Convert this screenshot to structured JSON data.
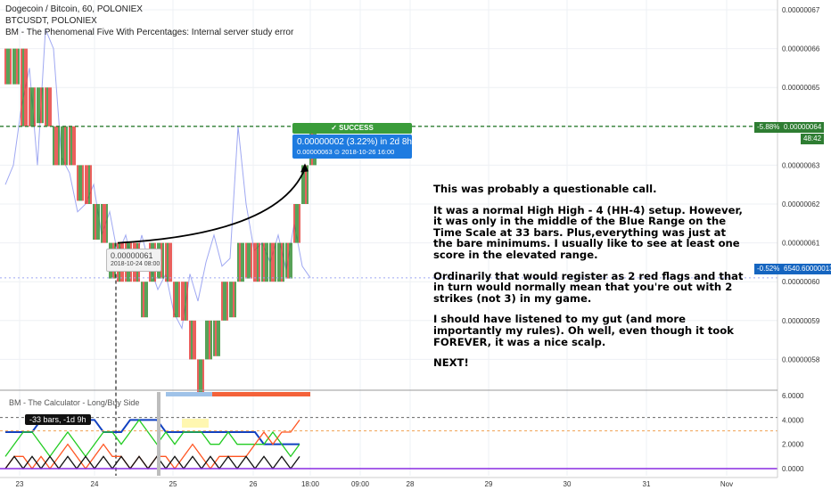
{
  "header": {
    "line1": "Dogecoin / Bitcoin, 60, POLONIEX",
    "line2": "BTCUSDT, POLONIEX",
    "line3": "BM - The Phenomenal Five With Percentages: Internal server study error"
  },
  "note": {
    "p1": "This was probably a questionable call.",
    "p2": "It was a normal High High - 4 (HH-4) setup. However, it was only in the middle of the Blue Range on the Time Scale at 33 bars. Plus,everything was just at the bare minimums. I usually like to see at least one score in the elevated range.",
    "p3": "Ordinarily that would register as 2 red flags and that in turn would normally mean that you're out with 2 strikes (not 3) in my game.",
    "p4": "I should have listened to my gut (and more importantly my rules). Oh well, even though it took FOREVER, it was a nice scalp.",
    "p5": "NEXT!"
  },
  "annotations": {
    "success_label": "✓ SUCCESS",
    "result_value": "0.00000002 (3.22%) in 2d 8h",
    "result_detail": "0.00000063  ⊙ 2018-10-26  16:00",
    "entry_value": "0.00000061",
    "entry_time": "2018-10-24 08:00",
    "bars_tag": "-33 bars, -1d 9h",
    "lower_indicator_title": "BM - The Calculator - Long/Buy Side"
  },
  "price_badges": {
    "current_pct": "-5.88%",
    "current_price": "0.00000064",
    "countdown": "48:42",
    "btc_pct": "-0.52%",
    "btc_price": "6540.60000013"
  },
  "colors": {
    "bull": "#2e8b2e",
    "bear": "#e53935",
    "btc_line": "#9fa8f2",
    "price_line": "#2e7d32",
    "badge_green": "#2e7d32",
    "badge_blue": "#1565c0"
  },
  "chart_data": [
    {
      "type": "line",
      "title": "Dogecoin / Bitcoin, 60, POLONIEX",
      "y_axis_ticks": [
        "0.00000067",
        "0.00000066",
        "0.00000065",
        "0.00000064",
        "0.00000063",
        "0.00000062",
        "0.00000061",
        "0.00000060",
        "0.00000059",
        "0.00000058"
      ],
      "ylim": [
        5.75e-07,
        6.73e-07
      ],
      "x_axis_ticks": [
        "23",
        "24",
        "25",
        "26",
        "18:00",
        "09:00",
        "28",
        "29",
        "30",
        "31",
        "Nov"
      ],
      "series": [
        {
          "name": "Dogecoin / Bitcoin",
          "style": "price bars",
          "values": [
            6.6e-07,
            6.6e-07,
            6.4e-07,
            6.5e-07,
            6.5e-07,
            6.4e-07,
            6.3e-07,
            6.4e-07,
            6.3e-07,
            6.3e-07,
            6.2e-07,
            6.2e-07,
            6.1e-07,
            6.1e-07,
            6e-07,
            6.1e-07,
            6e-07,
            6e-07,
            6.1e-07,
            6.1e-07,
            6e-07,
            6e-07,
            5.9e-07,
            5.8e-07,
            5.8e-07,
            5.9e-07,
            5.9e-07,
            6e-07,
            6e-07,
            6.1e-07,
            6.1e-07,
            6e-07,
            6.1e-07,
            6e-07,
            6.1e-07,
            6.1e-07,
            6.2e-07,
            6.3e-07,
            6.4e-07
          ]
        },
        {
          "name": "BTCUSDT",
          "style": "line",
          "values": [
            6.25e-07,
            6.3e-07,
            6.45e-07,
            6.55e-07,
            6.3e-07,
            6.65e-07,
            6.6e-07,
            6.32e-07,
            6.28e-07,
            6.18e-07,
            6.2e-07,
            6.25e-07,
            6.12e-07,
            6.18e-07,
            6.07e-07,
            6.12e-07,
            6.03e-07,
            6.12e-07,
            6.04e-07,
            5.98e-07,
            6.02e-07,
            5.92e-07,
            5.88e-07,
            6.02e-07,
            5.95e-07,
            6.05e-07,
            6.12e-07,
            6.04e-07,
            6.06e-07,
            6.4e-07,
            6.2e-07,
            6.08e-07,
            6.1e-07,
            6.05e-07,
            6.12e-07,
            6.03e-07,
            6.15e-07,
            6.04e-07,
            6.01e-07
          ]
        }
      ]
    },
    {
      "type": "line",
      "title": "BM - The Calculator - Long/Buy Side",
      "y_axis_ticks": [
        "6.0000",
        "4.0000",
        "2.0000",
        "0.0000"
      ],
      "ylim": [
        0,
        6
      ],
      "series": [
        {
          "name": "blue",
          "values": [
            3,
            3,
            3,
            3,
            4,
            4,
            4,
            4,
            4,
            4,
            4,
            3,
            3,
            3,
            4,
            4,
            4,
            4,
            3,
            3,
            3,
            3,
            3,
            3,
            3,
            3,
            3,
            3,
            3,
            2,
            2,
            2,
            2,
            2
          ]
        },
        {
          "name": "green",
          "values": [
            1,
            2,
            3,
            3,
            2,
            1,
            2,
            3,
            2,
            1,
            2,
            3,
            3,
            2,
            3,
            4,
            3,
            2,
            3,
            2,
            3,
            3,
            3,
            2,
            2,
            3,
            2,
            2,
            2,
            2,
            3,
            2,
            1,
            2
          ]
        },
        {
          "name": "red",
          "values": [
            0,
            1,
            1,
            0,
            1,
            0,
            1,
            2,
            1,
            0,
            1,
            2,
            1,
            1,
            0,
            1,
            0,
            1,
            1,
            0,
            1,
            2,
            1,
            0,
            1,
            1,
            1,
            1,
            2,
            3,
            2,
            3,
            3,
            4
          ]
        },
        {
          "name": "black",
          "values": [
            0,
            1,
            0,
            1,
            0,
            1,
            0,
            1,
            0,
            1,
            0,
            1,
            0,
            1,
            0,
            1,
            0,
            1,
            0,
            1,
            0,
            1,
            0,
            1,
            0,
            1,
            0,
            1,
            0,
            1,
            0,
            1,
            0,
            1
          ]
        }
      ],
      "reference_values": [
        4.2,
        3.1
      ]
    }
  ]
}
